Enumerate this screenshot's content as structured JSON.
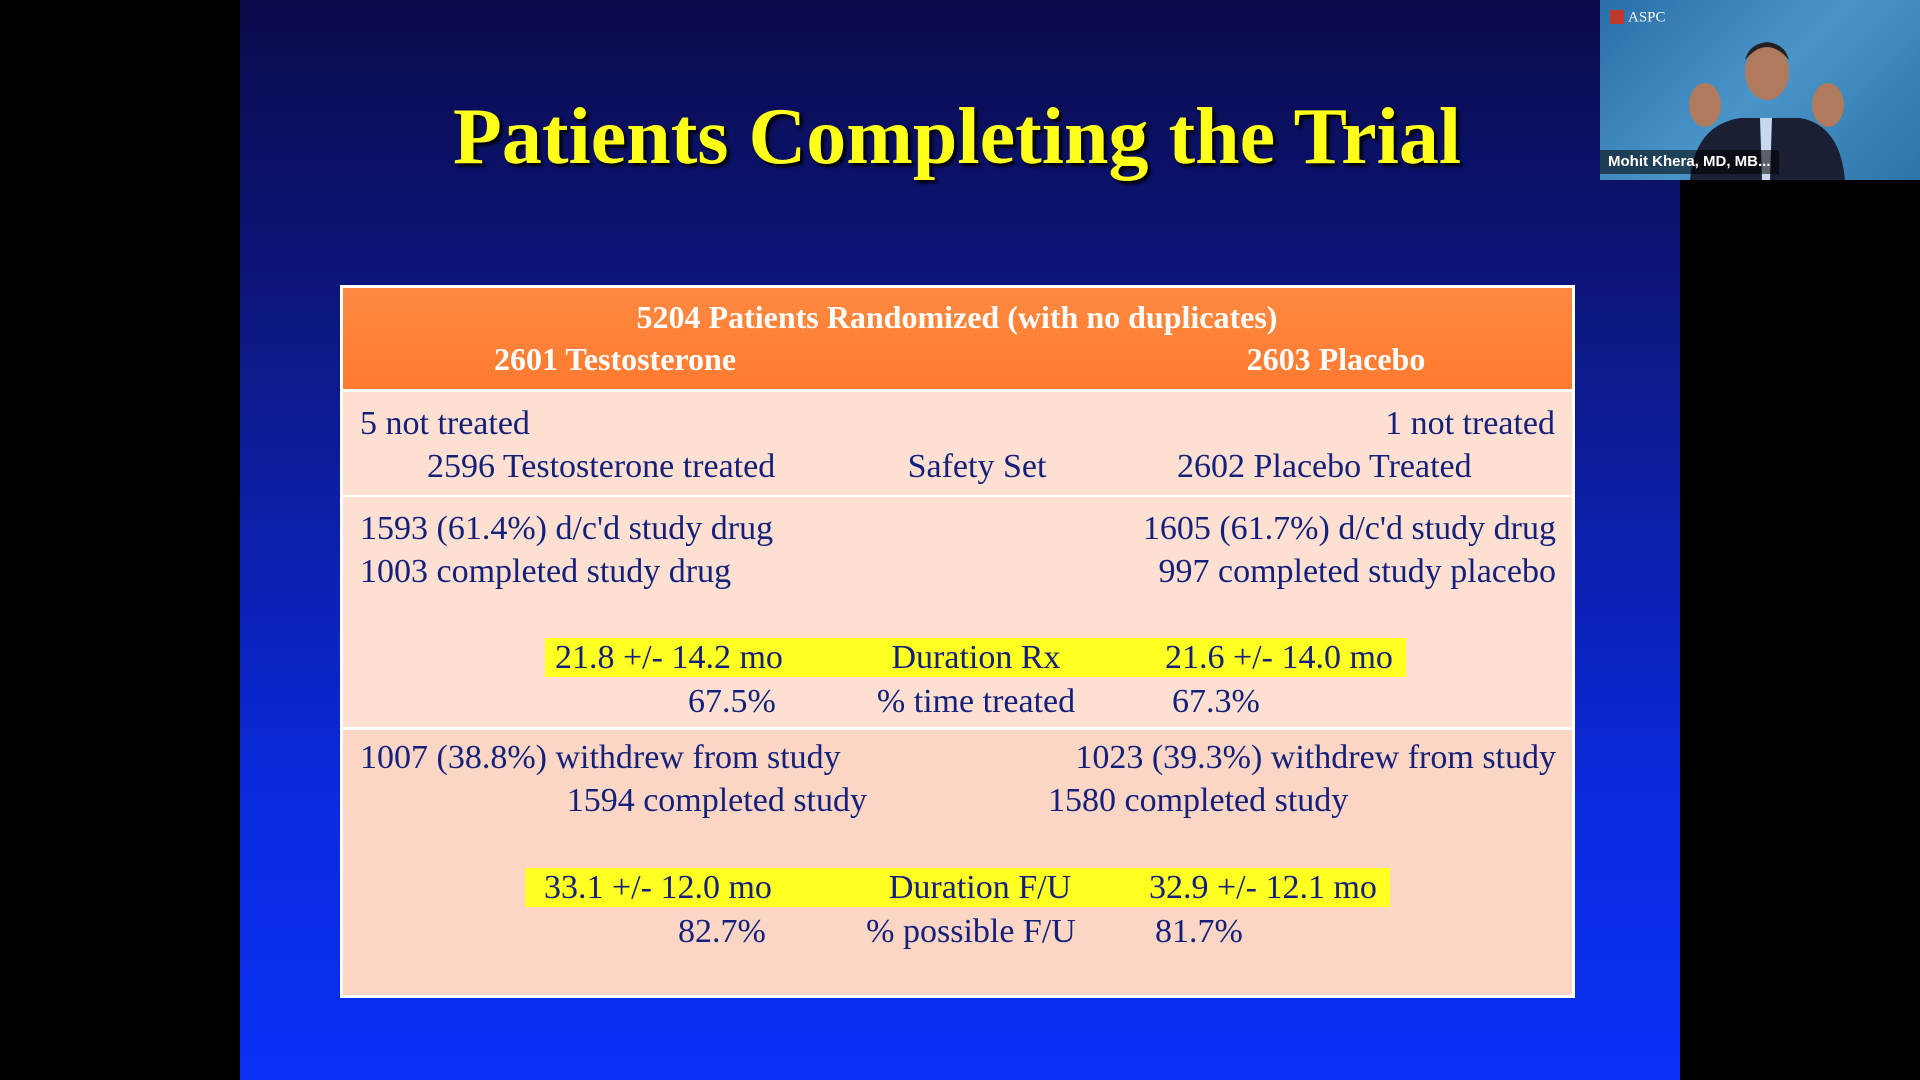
{
  "slide": {
    "title": "Patients Completing the Trial",
    "table": {
      "header": [
        "5204 Patients Randomized (with no duplicates)",
        "2601 Testosterone",
        "2603 Placebo"
      ],
      "sections": [
        [
          "5 not treated",
          "1 not treated",
          "2596 Testosterone treated",
          "Safety Set",
          "2602 Placebo Treated"
        ],
        [
          "1593 (61.4%) d/c'd study drug",
          "1605 (61.7%) d/c'd study drug",
          "1003 completed study drug",
          "997 completed study placebo",
          "21.8 +/- 14.2 mo",
          "Duration Rx",
          "21.6 +/- 14.0 mo",
          "67.5%",
          "% time treated",
          "67.3%"
        ],
        [
          "1007 (38.8%) withdrew from study",
          "1594 completed study",
          "1023 (39.3%) withdrew from study",
          "1580 completed study",
          "33.1 +/- 12.0 mo",
          "Duration F/U",
          "32.9 +/- 12.1 mo",
          "82.7%",
          "% possible F/U",
          "81.7%"
        ]
      ]
    }
  },
  "video": {
    "logo": "ASPC",
    "name": "Mohit Khera, MD, MB..."
  }
}
